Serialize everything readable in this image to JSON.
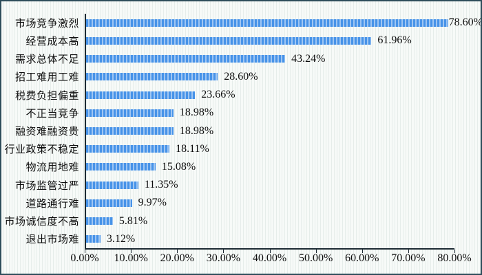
{
  "chart_data": {
    "type": "bar",
    "orientation": "horizontal",
    "title": "",
    "xlabel": "",
    "ylabel": "",
    "xlim": [
      0,
      80
    ],
    "grid": false,
    "legend": "none",
    "bar_color": "#4793e8",
    "categories": [
      "市场竞争激烈",
      "经营成本高",
      "需求总体不足",
      "招工难用工难",
      "税费负担偏重",
      "不正当竞争",
      "融资难融资贵",
      "行业政策不稳定",
      "物流用地难",
      "市场监管过严",
      "道路通行难",
      "市场诚信度不高",
      "退出市场难"
    ],
    "values": [
      78.6,
      61.96,
      43.24,
      28.6,
      23.66,
      18.98,
      18.98,
      18.11,
      15.08,
      11.35,
      9.97,
      5.81,
      3.12
    ],
    "value_labels": [
      "78.60%",
      "61.96%",
      "43.24%",
      "28.60%",
      "23.66%",
      "18.98%",
      "18.98%",
      "18.11%",
      "15.08%",
      "11.35%",
      "9.97%",
      "5.81%",
      "3.12%"
    ],
    "x_tick_labels": [
      "0.00%",
      "10.00%",
      "20.00%",
      "30.00%",
      "40.00%",
      "50.00%",
      "60.00%",
      "70.00%",
      "80.00%"
    ],
    "x_tick_values": [
      0,
      10,
      20,
      30,
      40,
      50,
      60,
      70,
      80
    ]
  }
}
